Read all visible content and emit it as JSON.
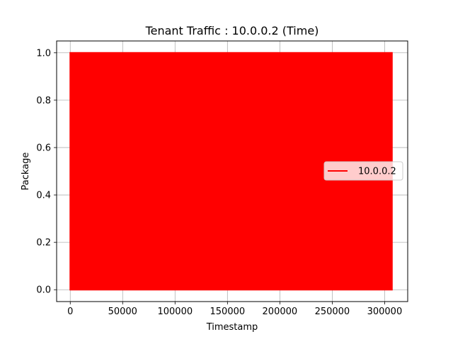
{
  "chart_data": {
    "type": "line",
    "title": "Tenant Traffic : 10.0.0.2 (Time)",
    "xlabel": "Timestamp",
    "ylabel": "Package",
    "xlim": [
      -13000,
      322000
    ],
    "ylim": [
      -0.05,
      1.05
    ],
    "xticks": [
      0,
      50000,
      100000,
      150000,
      200000,
      250000,
      300000
    ],
    "yticks": [
      0.0,
      0.2,
      0.4,
      0.6,
      0.8,
      1.0
    ],
    "xtick_labels": [
      "0",
      "50000",
      "100000",
      "150000",
      "200000",
      "250000",
      "300000"
    ],
    "ytick_labels": [
      "0.0",
      "0.2",
      "0.4",
      "0.6",
      "0.8",
      "1.0"
    ],
    "grid": true,
    "legend_position": "center-right",
    "series": [
      {
        "name": "10.0.0.2",
        "color": "#ff0000",
        "x_range": [
          0,
          307000
        ],
        "values_range": [
          0,
          1
        ],
        "pattern": "dense oscillation between 0 and 1"
      }
    ]
  }
}
